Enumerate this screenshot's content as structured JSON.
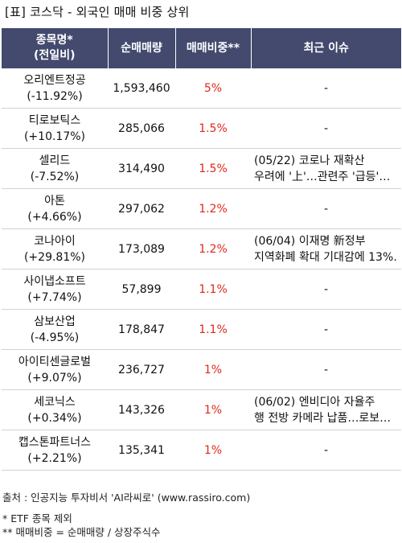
{
  "title": "[표] 코스닥 - 외국인 매매 비중 상위",
  "headers": {
    "name_line1": "종목명*",
    "name_line2": "(전일비)",
    "volume": "순매매량",
    "ratio": "매매비중**",
    "issue": "최근 이슈"
  },
  "rows": [
    {
      "name": "오리엔트정공",
      "change": "(-11.92%)",
      "volume": "1,593,460",
      "ratio": "5%",
      "issue1": "-",
      "issue2": ""
    },
    {
      "name": "티로보틱스",
      "change": "(+10.17%)",
      "volume": "285,066",
      "ratio": "1.5%",
      "issue1": "-",
      "issue2": ""
    },
    {
      "name": "셀리드",
      "change": "(-7.52%)",
      "volume": "314,490",
      "ratio": "1.5%",
      "issue1": "(05/22) 코로나 재확산",
      "issue2": "우려에 '上'…관련주 '급등'…"
    },
    {
      "name": "아톤",
      "change": "(+4.66%)",
      "volume": "297,062",
      "ratio": "1.2%",
      "issue1": "-",
      "issue2": ""
    },
    {
      "name": "코나아이",
      "change": "(+29.81%)",
      "volume": "173,089",
      "ratio": "1.2%",
      "issue1": "(06/04) 이재명 新정부",
      "issue2": "지역화폐 확대 기대감에 13%…"
    },
    {
      "name": "사이냅소프트",
      "change": "(+7.74%)",
      "volume": "57,899",
      "ratio": "1.1%",
      "issue1": "-",
      "issue2": ""
    },
    {
      "name": "삼보산업",
      "change": "(-4.95%)",
      "volume": "178,847",
      "ratio": "1.1%",
      "issue1": "-",
      "issue2": ""
    },
    {
      "name": "아이티센글로벌",
      "change": "(+9.07%)",
      "volume": "236,727",
      "ratio": "1%",
      "issue1": "-",
      "issue2": ""
    },
    {
      "name": "세코닉스",
      "change": "(+0.34%)",
      "volume": "143,326",
      "ratio": "1%",
      "issue1": "(06/02) 엔비디아 자율주",
      "issue2": "행 전방 카메라 납품…로보…"
    },
    {
      "name": "캡스톤파트너스",
      "change": "(+2.21%)",
      "volume": "135,341",
      "ratio": "1%",
      "issue1": "-",
      "issue2": ""
    }
  ],
  "footer": {
    "source": "출처 : 인공지능 투자비서 'AI라씨로' (www.rassiro.com)",
    "note1": "* ETF 종목 제외",
    "note2": "** 매매비중 = 순매매량 / 상장주식수"
  },
  "colors": {
    "header_bg": "#434a6e",
    "header_text": "#ffffff",
    "ratio_text": "#e0271a",
    "row_border": "#cfd2dc"
  }
}
